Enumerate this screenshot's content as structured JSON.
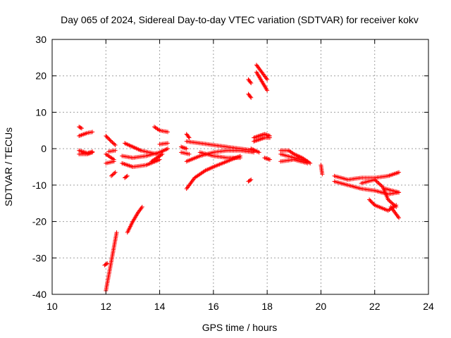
{
  "chart_data": {
    "type": "scatter",
    "title": "Day 065 of 2024, Sidereal Day-to-day VTEC variation (SDTVAR) for receiver kokv",
    "xlabel": "GPS time / hours",
    "ylabel": "SDTVAR / TECUs",
    "xlim": [
      10,
      24
    ],
    "ylim": [
      -40,
      30
    ],
    "xticks": [
      10,
      12,
      14,
      16,
      18,
      20,
      22,
      24
    ],
    "yticks": [
      -40,
      -30,
      -20,
      -10,
      0,
      10,
      20,
      30
    ],
    "grid": true,
    "marker": "+",
    "color": "#ff0000",
    "tracks": [
      {
        "x": [
          11.0,
          11.1
        ],
        "y": [
          6.0,
          5.6
        ]
      },
      {
        "x": [
          11.0,
          11.3,
          11.5
        ],
        "y": [
          3.5,
          4.3,
          4.6
        ]
      },
      {
        "x": [
          11.0,
          11.3,
          11.5
        ],
        "y": [
          -0.5,
          -1.2,
          -0.8
        ]
      },
      {
        "x": [
          11.0,
          11.3,
          11.5
        ],
        "y": [
          -1.5,
          -1.5,
          -1.0
        ]
      },
      {
        "x": [
          12.0,
          12.2,
          12.35
        ],
        "y": [
          3.5,
          2.0,
          1.0
        ]
      },
      {
        "x": [
          12.1,
          12.35
        ],
        "y": [
          -0.8,
          -0.5
        ]
      },
      {
        "x": [
          12.2,
          12.35
        ],
        "y": [
          -7.5,
          -6.5
        ]
      },
      {
        "x": [
          12.0,
          12.3
        ],
        "y": [
          -1.5,
          -3.0
        ]
      },
      {
        "x": [
          12.0,
          12.3
        ],
        "y": [
          -4.0,
          -3.5
        ]
      },
      {
        "x": [
          12.0,
          12.1,
          12.2,
          12.3,
          12.4
        ],
        "y": [
          -39.0,
          -35.0,
          -31.0,
          -27.0,
          -23.0
        ]
      },
      {
        "x": [
          11.95,
          12.05
        ],
        "y": [
          -32.0,
          -31.5
        ]
      },
      {
        "x": [
          12.7,
          12.8
        ],
        "y": [
          -8.0,
          -7.5
        ]
      },
      {
        "x": [
          12.6,
          13.0,
          13.5,
          14.0,
          14.3
        ],
        "y": [
          -2.0,
          -2.5,
          -2.0,
          -1.0,
          0.0
        ]
      },
      {
        "x": [
          12.6,
          13.0,
          13.5,
          14.0
        ],
        "y": [
          -4.0,
          -5.0,
          -4.5,
          -3.0
        ]
      },
      {
        "x": [
          12.7,
          13.0,
          13.3,
          13.6,
          13.9
        ],
        "y": [
          1.5,
          0.5,
          -0.5,
          -1.0,
          -1.5
        ]
      },
      {
        "x": [
          12.8,
          13.0,
          13.2,
          13.35
        ],
        "y": [
          -23.0,
          -20.0,
          -17.5,
          -16.0
        ]
      },
      {
        "x": [
          13.7,
          14.1
        ],
        "y": [
          -3.5,
          -1.5
        ]
      },
      {
        "x": [
          14.0,
          14.3
        ],
        "y": [
          1.2,
          1.5
        ]
      },
      {
        "x": [
          13.8,
          14.0,
          14.3
        ],
        "y": [
          6.0,
          5.0,
          4.6
        ]
      },
      {
        "x": [
          14.8,
          15.0
        ],
        "y": [
          0.5,
          0.0
        ]
      },
      {
        "x": [
          14.8,
          15.1
        ],
        "y": [
          -1.0,
          -1.5
        ]
      },
      {
        "x": [
          15.0,
          15.1
        ],
        "y": [
          4.0,
          3.0
        ]
      },
      {
        "x": [
          15.0,
          15.5,
          16.0,
          16.5,
          17.0,
          17.5
        ],
        "y": [
          2.0,
          1.5,
          1.0,
          0.5,
          0.0,
          -0.5
        ]
      },
      {
        "x": [
          15.0,
          15.5,
          16.0,
          16.5,
          17.0,
          17.5
        ],
        "y": [
          -3.5,
          -2.0,
          -1.0,
          -0.5,
          -0.5,
          -1.0
        ]
      },
      {
        "x": [
          15.0,
          15.3,
          15.7,
          16.0,
          16.5,
          17.0
        ],
        "y": [
          -11.0,
          -8.0,
          -6.0,
          -5.0,
          -3.5,
          -2.0
        ]
      },
      {
        "x": [
          15.5,
          16.0,
          16.5,
          17.0
        ],
        "y": [
          -1.0,
          -2.0,
          -2.5,
          -2.5
        ]
      },
      {
        "x": [
          17.3,
          17.4
        ],
        "y": [
          -9.0,
          -8.5
        ]
      },
      {
        "x": [
          17.3,
          17.4
        ],
        "y": [
          15.0,
          14.0
        ]
      },
      {
        "x": [
          17.3,
          17.4
        ],
        "y": [
          19.0,
          18.0
        ]
      },
      {
        "x": [
          17.6,
          17.8,
          18.0
        ],
        "y": [
          23.0,
          21.0,
          19.0
        ]
      },
      {
        "x": [
          17.6,
          17.8,
          18.0
        ],
        "y": [
          21.0,
          18.5,
          16.0
        ]
      },
      {
        "x": [
          17.5,
          17.7,
          17.9,
          18.1
        ],
        "y": [
          3.0,
          3.5,
          4.0,
          3.5
        ]
      },
      {
        "x": [
          17.5,
          17.7,
          17.9,
          18.1
        ],
        "y": [
          2.0,
          2.5,
          3.0,
          3.0
        ]
      },
      {
        "x": [
          17.9,
          18.1
        ],
        "y": [
          -2.5,
          -3.0
        ]
      },
      {
        "x": [
          17.4,
          17.7
        ],
        "y": [
          0.0,
          -1.0
        ]
      },
      {
        "x": [
          18.5,
          18.8,
          19.0,
          19.3,
          19.6
        ],
        "y": [
          -0.5,
          -0.5,
          -1.5,
          -2.5,
          -4.0
        ]
      },
      {
        "x": [
          18.5,
          19.0,
          19.5
        ],
        "y": [
          -1.5,
          -2.5,
          -3.5
        ]
      },
      {
        "x": [
          18.5,
          19.0,
          19.5
        ],
        "y": [
          -3.5,
          -3.0,
          -4.0
        ]
      },
      {
        "x": [
          20.0,
          20.05
        ],
        "y": [
          -4.5,
          -7.0
        ]
      },
      {
        "x": [
          20.5,
          21.0,
          21.5,
          22.0,
          22.5,
          22.9
        ],
        "y": [
          -7.5,
          -8.5,
          -8.0,
          -8.0,
          -7.5,
          -6.5
        ]
      },
      {
        "x": [
          20.5,
          21.0,
          21.5,
          22.0,
          22.5,
          22.9
        ],
        "y": [
          -9.0,
          -10.0,
          -11.0,
          -11.5,
          -12.5,
          -12.0
        ]
      },
      {
        "x": [
          21.5,
          22.0,
          22.3,
          22.5,
          22.8
        ],
        "y": [
          -9.5,
          -8.5,
          -10.5,
          -14.0,
          -16.0
        ]
      },
      {
        "x": [
          21.8,
          22.0,
          22.5,
          22.8
        ],
        "y": [
          -14.0,
          -15.5,
          -17.0,
          -15.5
        ]
      },
      {
        "x": [
          22.6,
          22.9
        ],
        "y": [
          -16.0,
          -19.0
        ]
      },
      {
        "x": [
          22.4,
          22.9
        ],
        "y": [
          -11.0,
          -12.0
        ]
      }
    ]
  }
}
